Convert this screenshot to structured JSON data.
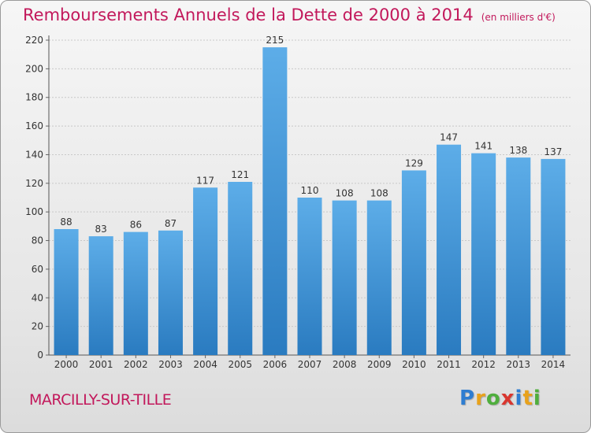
{
  "chart_data": {
    "type": "bar",
    "title": "Remboursements Annuels de la Dette de 2000 à 2014",
    "unit_note": "(en milliers d'€)",
    "categories": [
      "2000",
      "2001",
      "2002",
      "2003",
      "2004",
      "2005",
      "2006",
      "2007",
      "2008",
      "2009",
      "2010",
      "2011",
      "2012",
      "2013",
      "2014"
    ],
    "values": [
      88,
      83,
      86,
      87,
      117,
      121,
      215,
      110,
      108,
      108,
      129,
      147,
      141,
      138,
      137
    ],
    "yticks": [
      0,
      20,
      40,
      60,
      80,
      100,
      120,
      140,
      160,
      180,
      200,
      220
    ],
    "ylim": [
      0,
      220
    ],
    "grid": true,
    "bar_color_top": "#5dade8",
    "bar_color_bottom": "#2a7bc0"
  },
  "location": "MARCILLY-SUR-TILLE",
  "logo": {
    "letters": [
      "P",
      "r",
      "o",
      "x",
      "i",
      "t",
      "i"
    ],
    "colors": [
      "#2e7dd1",
      "#e8a21c",
      "#4fae3d",
      "#d9362f",
      "#2e7dd1",
      "#e8a21c",
      "#4fae3d"
    ]
  }
}
